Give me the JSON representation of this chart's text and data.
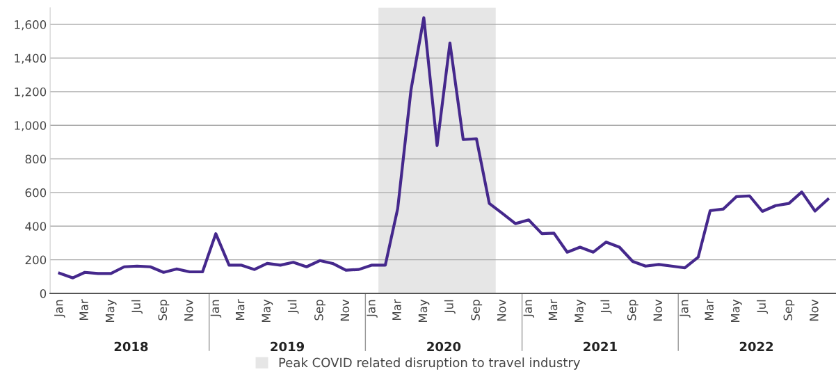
{
  "chart_data": {
    "type": "line",
    "x": [
      "2018-01",
      "2018-02",
      "2018-03",
      "2018-04",
      "2018-05",
      "2018-06",
      "2018-07",
      "2018-08",
      "2018-09",
      "2018-10",
      "2018-11",
      "2018-12",
      "2019-01",
      "2019-02",
      "2019-03",
      "2019-04",
      "2019-05",
      "2019-06",
      "2019-07",
      "2019-08",
      "2019-09",
      "2019-10",
      "2019-11",
      "2019-12",
      "2020-01",
      "2020-02",
      "2020-03",
      "2020-04",
      "2020-05",
      "2020-06",
      "2020-07",
      "2020-08",
      "2020-09",
      "2020-10",
      "2020-11",
      "2020-12",
      "2021-01",
      "2021-02",
      "2021-03",
      "2021-04",
      "2021-05",
      "2021-06",
      "2021-07",
      "2021-08",
      "2021-09",
      "2021-10",
      "2021-11",
      "2021-12",
      "2022-01",
      "2022-02",
      "2022-03",
      "2022-04",
      "2022-05",
      "2022-06",
      "2022-07",
      "2022-08",
      "2022-09",
      "2022-10",
      "2022-11",
      "2022-12"
    ],
    "series": [
      {
        "color": "#45288c",
        "values": [
          120,
          92,
          125,
          118,
          118,
          158,
          162,
          158,
          125,
          145,
          128,
          128,
          355,
          168,
          168,
          142,
          178,
          168,
          185,
          158,
          195,
          178,
          138,
          142,
          168,
          168,
          505,
          1210,
          1640,
          880,
          1490,
          915,
          920,
          535,
          475,
          415,
          437,
          355,
          358,
          245,
          275,
          245,
          305,
          275,
          190,
          162,
          172,
          162,
          152,
          215,
          492,
          502,
          575,
          580,
          488,
          522,
          535,
          603,
          490,
          560
        ]
      }
    ],
    "xlim": [
      "2017-12-10",
      "2022-12-20"
    ],
    "xticks": [
      {
        "value": "2018-01",
        "label": "Jan"
      },
      {
        "value": "2018-03",
        "label": "Mar"
      },
      {
        "value": "2018-05",
        "label": "May"
      },
      {
        "value": "2018-07",
        "label": "Jul"
      },
      {
        "value": "2018-09",
        "label": "Sep"
      },
      {
        "value": "2018-11",
        "label": "Nov"
      },
      {
        "value": "2019-01",
        "label": "Jan"
      },
      {
        "value": "2019-03",
        "label": "Mar"
      },
      {
        "value": "2019-05",
        "label": "May"
      },
      {
        "value": "2019-07",
        "label": "Jul"
      },
      {
        "value": "2019-09",
        "label": "Sep"
      },
      {
        "value": "2019-11",
        "label": "Nov"
      },
      {
        "value": "2020-01",
        "label": "Jan"
      },
      {
        "value": "2020-03",
        "label": "Mar"
      },
      {
        "value": "2020-05",
        "label": "May"
      },
      {
        "value": "2020-07",
        "label": "Jul"
      },
      {
        "value": "2020-09",
        "label": "Sep"
      },
      {
        "value": "2020-11",
        "label": "Nov"
      },
      {
        "value": "2021-01",
        "label": "Jan"
      },
      {
        "value": "2021-03",
        "label": "Mar"
      },
      {
        "value": "2021-05",
        "label": "May"
      },
      {
        "value": "2021-07",
        "label": "Jul"
      },
      {
        "value": "2021-09",
        "label": "Sep"
      },
      {
        "value": "2021-11",
        "label": "Nov"
      },
      {
        "value": "2022-01",
        "label": "Jan"
      },
      {
        "value": "2022-03",
        "label": "Mar"
      },
      {
        "value": "2022-05",
        "label": "May"
      },
      {
        "value": "2022-07",
        "label": "Jul"
      },
      {
        "value": "2022-09",
        "label": "Sep"
      },
      {
        "value": "2022-11",
        "label": "Nov"
      }
    ],
    "ylim": [
      0,
      1700
    ],
    "yticks": [
      0,
      200,
      400,
      600,
      800,
      {
        "value": 1000,
        "label": "1,000"
      },
      {
        "value": 1200,
        "label": "1,200"
      },
      {
        "value": 1400,
        "label": "1,400"
      },
      {
        "value": 1600,
        "label": "1,600"
      }
    ],
    "grid": "y",
    "bands": [
      {
        "axis": "x",
        "from": "2020-01-16",
        "to": "2020-10-16",
        "label": "Peak COVID related disruption to travel industry",
        "color": "#e6e6e6"
      }
    ],
    "annotations": [
      "2018",
      "2019",
      "2020",
      "2021",
      "2022"
    ],
    "legend": "bottom"
  }
}
